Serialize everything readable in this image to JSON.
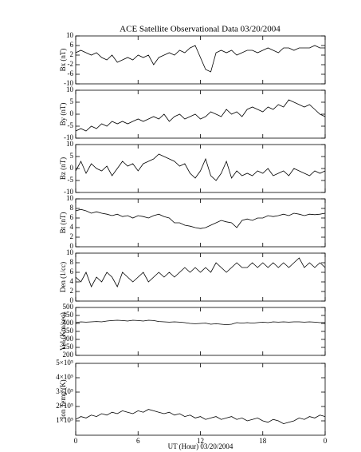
{
  "chart_data": [
    {
      "type": "line",
      "title": "ACE Satellite Observational Data  03/20/2004",
      "ylabel": "Bx (nT)",
      "color": "#000000",
      "x": [
        0,
        0.5,
        1,
        1.5,
        2,
        2.5,
        3,
        3.5,
        4,
        4.5,
        5,
        5.5,
        6,
        6.5,
        7,
        7.5,
        8,
        8.5,
        9,
        9.5,
        10,
        10.5,
        11,
        11.5,
        12,
        12.5,
        13,
        13.5,
        14,
        14.5,
        15,
        15.5,
        16,
        16.5,
        17,
        17.5,
        18,
        18.5,
        19,
        19.5,
        20,
        20.5,
        21,
        21.5,
        22,
        22.5,
        23,
        23.5,
        24
      ],
      "values": [
        3,
        4,
        3,
        2,
        3,
        1,
        0,
        2,
        -1,
        0,
        1,
        0,
        2,
        1,
        2,
        -2,
        1,
        2,
        3,
        2,
        4,
        3,
        5,
        6,
        1,
        -4,
        -5,
        3,
        4,
        3,
        4,
        2,
        3,
        4,
        4,
        3,
        4,
        5,
        4,
        3,
        5,
        5,
        4,
        5,
        5,
        5,
        6,
        5,
        5
      ],
      "xlim": [
        0,
        24
      ],
      "xticks": [
        0,
        6,
        12,
        18,
        {
          "value": 24,
          "label": "0"
        }
      ],
      "ylim": [
        -10,
        10
      ],
      "yticks": [
        -10,
        -6,
        -2,
        2,
        6,
        10
      ]
    },
    {
      "type": "line",
      "ylabel": "By (nT)",
      "color": "#000000",
      "x": [
        0,
        0.5,
        1,
        1.5,
        2,
        2.5,
        3,
        3.5,
        4,
        4.5,
        5,
        5.5,
        6,
        6.5,
        7,
        7.5,
        8,
        8.5,
        9,
        9.5,
        10,
        10.5,
        11,
        11.5,
        12,
        12.5,
        13,
        13.5,
        14,
        14.5,
        15,
        15.5,
        16,
        16.5,
        17,
        17.5,
        18,
        18.5,
        19,
        19.5,
        20,
        20.5,
        21,
        21.5,
        22,
        22.5,
        23,
        23.5,
        24
      ],
      "values": [
        -7,
        -6,
        -7,
        -5,
        -6,
        -4,
        -5,
        -3,
        -4,
        -3,
        -4,
        -3,
        -2,
        -3,
        -2,
        -1,
        -2,
        0,
        -3,
        -1,
        0,
        -2,
        -1,
        0,
        -2,
        -1,
        1,
        0,
        -1,
        2,
        0,
        1,
        -1,
        2,
        3,
        2,
        1,
        3,
        2,
        4,
        3,
        6,
        5,
        4,
        3,
        4,
        2,
        0,
        -1
      ],
      "xlim": [
        0,
        24
      ],
      "xticks": [
        0,
        6,
        12,
        18,
        {
          "value": 24,
          "label": "0"
        }
      ],
      "ylim": [
        -10,
        10
      ],
      "yticks": [
        -10,
        -5,
        0,
        5,
        10
      ]
    },
    {
      "type": "line",
      "ylabel": "Bz (nT)",
      "color": "#000000",
      "x": [
        0,
        0.5,
        1,
        1.5,
        2,
        2.5,
        3,
        3.5,
        4,
        4.5,
        5,
        5.5,
        6,
        6.5,
        7,
        7.5,
        8,
        8.5,
        9,
        9.5,
        10,
        10.5,
        11,
        11.5,
        12,
        12.5,
        13,
        13.5,
        14,
        14.5,
        15,
        15.5,
        16,
        16.5,
        17,
        17.5,
        18,
        18.5,
        19,
        19.5,
        20,
        20.5,
        21,
        21.5,
        22,
        22.5,
        23,
        23.5,
        24
      ],
      "values": [
        -1,
        3,
        -2,
        2,
        0,
        -1,
        1,
        -3,
        0,
        3,
        1,
        2,
        -1,
        2,
        3,
        4,
        6,
        5,
        4,
        3,
        1,
        2,
        -2,
        -4,
        -1,
        4,
        -3,
        -5,
        -2,
        3,
        -4,
        -1,
        -3,
        -2,
        -3,
        -1,
        -2,
        0,
        -3,
        -2,
        -1,
        -3,
        0,
        -1,
        -2,
        -3,
        -1,
        -2,
        -1
      ],
      "xlim": [
        0,
        24
      ],
      "xticks": [
        0,
        6,
        12,
        18,
        {
          "value": 24,
          "label": "0"
        }
      ],
      "ylim": [
        -10,
        10
      ],
      "yticks": [
        -10,
        -5,
        0,
        5,
        10
      ]
    },
    {
      "type": "line",
      "ylabel": "Bt (nT)",
      "color": "#000000",
      "x": [
        0,
        0.5,
        1,
        1.5,
        2,
        2.5,
        3,
        3.5,
        4,
        4.5,
        5,
        5.5,
        6,
        6.5,
        7,
        7.5,
        8,
        8.5,
        9,
        9.5,
        10,
        10.5,
        11,
        11.5,
        12,
        12.5,
        13,
        13.5,
        14,
        14.5,
        15,
        15.5,
        16,
        16.5,
        17,
        17.5,
        18,
        18.5,
        19,
        19.5,
        20,
        20.5,
        21,
        21.5,
        22,
        22.5,
        23,
        23.5,
        24
      ],
      "values": [
        7.5,
        7.8,
        7.5,
        7,
        7.3,
        7,
        6.8,
        6.5,
        6.8,
        6.3,
        6.5,
        6,
        6.5,
        6.3,
        6,
        6.5,
        6.8,
        6.3,
        6,
        5,
        5,
        4.5,
        4.3,
        4,
        3.8,
        4,
        4.5,
        5,
        5.5,
        5.2,
        5,
        4,
        5.5,
        5.8,
        5.5,
        6,
        6,
        6.5,
        6.3,
        6.5,
        6.8,
        6.5,
        7,
        6.8,
        6.5,
        6.8,
        6.7,
        6.8,
        7
      ],
      "xlim": [
        0,
        24
      ],
      "xticks": [
        0,
        6,
        12,
        18,
        {
          "value": 24,
          "label": "0"
        }
      ],
      "ylim": [
        0,
        10
      ],
      "yticks": [
        0,
        2,
        4,
        6,
        8,
        10
      ]
    },
    {
      "type": "line",
      "ylabel": "Den (1/cc)",
      "color": "#000000",
      "x": [
        0,
        0.5,
        1,
        1.5,
        2,
        2.5,
        3,
        3.5,
        4,
        4.5,
        5,
        5.5,
        6,
        6.5,
        7,
        7.5,
        8,
        8.5,
        9,
        9.5,
        10,
        10.5,
        11,
        11.5,
        12,
        12.5,
        13,
        13.5,
        14,
        14.5,
        15,
        15.5,
        16,
        16.5,
        17,
        17.5,
        18,
        18.5,
        19,
        19.5,
        20,
        20.5,
        21,
        21.5,
        22,
        22.5,
        23,
        23.5,
        24
      ],
      "values": [
        5,
        4,
        6,
        3,
        5,
        4,
        6,
        5,
        3,
        6,
        5,
        4,
        5,
        6,
        4,
        5,
        6,
        5,
        6,
        5,
        6,
        7,
        6,
        7,
        6,
        7,
        6,
        8,
        7,
        6,
        7,
        8,
        7,
        7,
        8,
        7,
        8,
        7,
        8,
        7,
        8,
        7,
        8,
        9,
        7,
        8,
        7,
        8,
        7
      ],
      "xlim": [
        0,
        24
      ],
      "xticks": [
        0,
        6,
        12,
        18,
        {
          "value": 24,
          "label": "0"
        }
      ],
      "ylim": [
        0,
        10
      ],
      "yticks": [
        0,
        2,
        4,
        6,
        8,
        10
      ]
    },
    {
      "type": "line",
      "ylabel": "Vel (Km/sec)",
      "color": "#000000",
      "x": [
        0,
        0.5,
        1,
        1.5,
        2,
        2.5,
        3,
        3.5,
        4,
        4.5,
        5,
        5.5,
        6,
        6.5,
        7,
        7.5,
        8,
        8.5,
        9,
        9.5,
        10,
        10.5,
        11,
        11.5,
        12,
        12.5,
        13,
        13.5,
        14,
        14.5,
        15,
        15.5,
        16,
        16.5,
        17,
        17.5,
        18,
        18.5,
        19,
        19.5,
        20,
        20.5,
        21,
        21.5,
        22,
        22.5,
        23,
        23.5,
        24
      ],
      "values": [
        405,
        410,
        408,
        410,
        412,
        410,
        415,
        418,
        420,
        418,
        415,
        420,
        418,
        415,
        420,
        418,
        412,
        410,
        408,
        410,
        408,
        405,
        400,
        398,
        400,
        402,
        395,
        398,
        395,
        392,
        395,
        405,
        402,
        405,
        402,
        405,
        408,
        405,
        410,
        408,
        410,
        408,
        410,
        410,
        408,
        410,
        408,
        405,
        405
      ],
      "xlim": [
        0,
        24
      ],
      "xticks": [
        0,
        6,
        12,
        18,
        {
          "value": 24,
          "label": "0"
        }
      ],
      "ylim": [
        200,
        500
      ],
      "yticks": [
        200,
        250,
        300,
        350,
        400,
        450,
        500
      ]
    },
    {
      "type": "line",
      "ylabel": "Ion Temp (K)",
      "xlabel": "UT (Hour)  03/20/2004",
      "color": "#000000",
      "x": [
        0,
        0.5,
        1,
        1.5,
        2,
        2.5,
        3,
        3.5,
        4,
        4.5,
        5,
        5.5,
        6,
        6.5,
        7,
        7.5,
        8,
        8.5,
        9,
        9.5,
        10,
        10.5,
        11,
        11.5,
        12,
        12.5,
        13,
        13.5,
        14,
        14.5,
        15,
        15.5,
        16,
        16.5,
        17,
        17.5,
        18,
        18.5,
        19,
        19.5,
        20,
        20.5,
        21,
        21.5,
        22,
        22.5,
        23,
        23.5,
        24
      ],
      "values": [
        110000,
        130000,
        120000,
        140000,
        130000,
        150000,
        140000,
        160000,
        150000,
        170000,
        160000,
        150000,
        170000,
        160000,
        180000,
        170000,
        160000,
        150000,
        160000,
        140000,
        150000,
        130000,
        140000,
        120000,
        130000,
        110000,
        120000,
        130000,
        110000,
        120000,
        130000,
        110000,
        120000,
        100000,
        110000,
        120000,
        100000,
        90000,
        110000,
        100000,
        80000,
        90000,
        100000,
        120000,
        110000,
        130000,
        120000,
        140000,
        130000
      ],
      "xlim": [
        0,
        24
      ],
      "xticks": [
        0,
        6,
        12,
        18,
        {
          "value": 24,
          "label": "0"
        }
      ],
      "ylim": [
        0,
        500000
      ],
      "yticks": [
        {
          "value": 100000,
          "label": "1×10⁵"
        },
        {
          "value": 200000,
          "label": "2×10⁵"
        },
        {
          "value": 300000,
          "label": "3×10⁵"
        },
        {
          "value": 400000,
          "label": "4×10⁵"
        },
        {
          "value": 500000,
          "label": "5×10⁵"
        }
      ]
    }
  ]
}
